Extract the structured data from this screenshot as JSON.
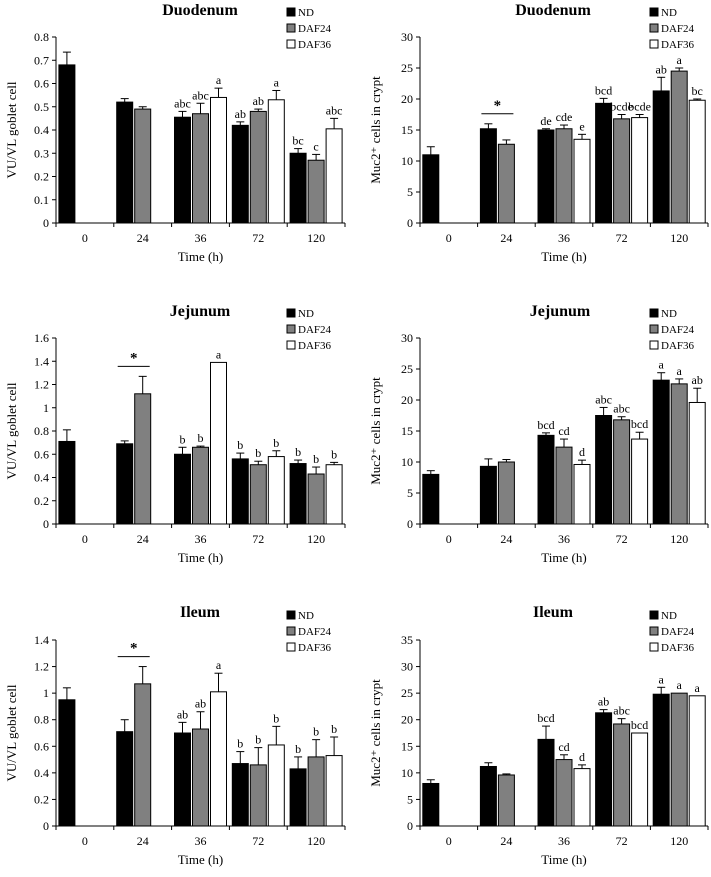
{
  "chart_data": [
    {
      "type": "bar",
      "title": "Duodenum",
      "xlabel": "Time (h)",
      "ylabel": "VU/VL goblet cell",
      "categories": [
        "0",
        "24",
        "36",
        "72",
        "120"
      ],
      "ylim": [
        0,
        0.8
      ],
      "yticks": [
        "0",
        "0.1",
        "0.2",
        "0.3",
        "0.4",
        "0.5",
        "0.6",
        "0.7",
        "0.8"
      ],
      "legend": [
        "ND",
        "DAF24",
        "DAF36"
      ],
      "series": [
        {
          "name": "ND",
          "color": "#000000",
          "values": [
            0.68,
            0.52,
            0.455,
            0.42,
            0.3
          ],
          "errors": [
            0.055,
            0.015,
            0.025,
            0.015,
            0.02
          ],
          "labels": [
            "",
            "",
            "abc",
            "ab",
            "bc"
          ]
        },
        {
          "name": "DAF24",
          "color": "#808080",
          "values": [
            null,
            0.49,
            0.47,
            0.48,
            0.27
          ],
          "errors": [
            null,
            0.01,
            0.045,
            0.01,
            0.025
          ],
          "labels": [
            "",
            "",
            "abc",
            "ab",
            "c"
          ]
        },
        {
          "name": "DAF36",
          "color": "#ffffff",
          "values": [
            null,
            null,
            0.54,
            0.53,
            0.405
          ],
          "errors": [
            null,
            null,
            0.04,
            0.04,
            0.045
          ],
          "labels": [
            "",
            "",
            "a",
            "a",
            "abc"
          ]
        }
      ],
      "significance": []
    },
    {
      "type": "bar",
      "title": "Duodenum",
      "xlabel": "Time (h)",
      "ylabel": "Muc2⁺ cells in crypt",
      "categories": [
        "0",
        "24",
        "36",
        "72",
        "120"
      ],
      "ylim": [
        0,
        30
      ],
      "yticks": [
        "0",
        "5",
        "10",
        "15",
        "20",
        "25",
        "30"
      ],
      "legend": [
        "ND",
        "DAF24",
        "DAF36"
      ],
      "series": [
        {
          "name": "ND",
          "color": "#000000",
          "values": [
            11.0,
            15.2,
            15.0,
            19.3,
            21.3
          ],
          "errors": [
            1.3,
            0.8,
            0.2,
            0.8,
            2.2
          ],
          "labels": [
            "",
            "",
            "de",
            "bcd",
            "ab"
          ]
        },
        {
          "name": "DAF24",
          "color": "#808080",
          "values": [
            null,
            12.7,
            15.2,
            16.8,
            24.5
          ],
          "errors": [
            null,
            0.7,
            0.6,
            0.7,
            0.5
          ],
          "labels": [
            "",
            "",
            "cde",
            "bcde",
            "a"
          ]
        },
        {
          "name": "DAF36",
          "color": "#ffffff",
          "values": [
            null,
            null,
            13.5,
            17.0,
            19.8
          ],
          "errors": [
            null,
            null,
            0.8,
            0.5,
            0.2
          ],
          "labels": [
            "",
            "",
            "e",
            "bcde",
            "bc"
          ]
        }
      ],
      "significance": [
        {
          "category": "24",
          "symbol": "*"
        }
      ]
    },
    {
      "type": "bar",
      "title": "Jejunum",
      "xlabel": "Time (h)",
      "ylabel": "VU/VL goblet cell",
      "categories": [
        "0",
        "24",
        "36",
        "72",
        "120"
      ],
      "ylim": [
        0,
        1.6
      ],
      "yticks": [
        "0",
        "0.2",
        "0.4",
        "0.6",
        "0.8",
        "1",
        "1.2",
        "1.4",
        "1.6"
      ],
      "legend": [
        "ND",
        "DAF24",
        "DAF36"
      ],
      "series": [
        {
          "name": "ND",
          "color": "#000000",
          "values": [
            0.71,
            0.69,
            0.6,
            0.56,
            0.52
          ],
          "errors": [
            0.1,
            0.025,
            0.06,
            0.05,
            0.03
          ],
          "labels": [
            "",
            "",
            "b",
            "b",
            "b"
          ]
        },
        {
          "name": "DAF24",
          "color": "#808080",
          "values": [
            null,
            1.12,
            0.66,
            0.51,
            0.43
          ],
          "errors": [
            null,
            0.15,
            0.01,
            0.03,
            0.06
          ],
          "labels": [
            "",
            "",
            "b",
            "b",
            "b"
          ]
        },
        {
          "name": "DAF36",
          "color": "#ffffff",
          "values": [
            null,
            null,
            1.39,
            0.58,
            0.51
          ],
          "errors": [
            null,
            null,
            0.0,
            0.05,
            0.02
          ],
          "labels": [
            "",
            "",
            "a",
            "b",
            "b"
          ]
        }
      ],
      "significance": [
        {
          "category": "24",
          "symbol": "*"
        }
      ]
    },
    {
      "type": "bar",
      "title": "Jejunum",
      "xlabel": "Time (h)",
      "ylabel": "Muc2⁺ cells in crypt",
      "categories": [
        "0",
        "24",
        "36",
        "72",
        "120"
      ],
      "ylim": [
        0,
        30
      ],
      "yticks": [
        "0",
        "5",
        "10",
        "15",
        "20",
        "25",
        "30"
      ],
      "legend": [
        "ND",
        "DAF24",
        "DAF36"
      ],
      "series": [
        {
          "name": "ND",
          "color": "#000000",
          "values": [
            8.0,
            9.3,
            14.3,
            17.5,
            23.2
          ],
          "errors": [
            0.6,
            1.2,
            0.4,
            1.3,
            1.2
          ],
          "labels": [
            "",
            "",
            "bcd",
            "abc",
            "a"
          ]
        },
        {
          "name": "DAF24",
          "color": "#808080",
          "values": [
            null,
            10.0,
            12.4,
            16.8,
            22.6
          ],
          "errors": [
            null,
            0.4,
            1.3,
            0.5,
            0.8
          ],
          "labels": [
            "",
            "",
            "cd",
            "abc",
            "a"
          ]
        },
        {
          "name": "DAF36",
          "color": "#ffffff",
          "values": [
            null,
            null,
            9.6,
            13.7,
            19.6
          ],
          "errors": [
            null,
            null,
            0.7,
            1.1,
            2.3
          ],
          "labels": [
            "",
            "",
            "d",
            "bcd",
            "ab"
          ]
        }
      ],
      "significance": []
    },
    {
      "type": "bar",
      "title": "Ileum",
      "xlabel": "Time (h)",
      "ylabel": "VU/VL goblet cell",
      "categories": [
        "0",
        "24",
        "36",
        "72",
        "120"
      ],
      "ylim": [
        0,
        1.4
      ],
      "yticks": [
        "0",
        "0.2",
        "0.4",
        "0.6",
        "0.8",
        "1",
        "1.2",
        "1.4"
      ],
      "legend": [
        "ND",
        "DAF24",
        "DAF36"
      ],
      "series": [
        {
          "name": "ND",
          "color": "#000000",
          "values": [
            0.95,
            0.71,
            0.7,
            0.47,
            0.43
          ],
          "errors": [
            0.09,
            0.09,
            0.08,
            0.09,
            0.09
          ],
          "labels": [
            "",
            "",
            "ab",
            "b",
            "b"
          ]
        },
        {
          "name": "DAF24",
          "color": "#808080",
          "values": [
            null,
            1.07,
            0.73,
            0.46,
            0.52
          ],
          "errors": [
            null,
            0.13,
            0.13,
            0.13,
            0.13
          ],
          "labels": [
            "",
            "",
            "ab",
            "b",
            "b"
          ]
        },
        {
          "name": "DAF36",
          "color": "#ffffff",
          "values": [
            null,
            null,
            1.01,
            0.61,
            0.53
          ],
          "errors": [
            null,
            null,
            0.14,
            0.14,
            0.14
          ],
          "labels": [
            "",
            "",
            "a",
            "b",
            "b"
          ]
        }
      ],
      "significance": [
        {
          "category": "24",
          "symbol": "*"
        }
      ]
    },
    {
      "type": "bar",
      "title": "Ileum",
      "xlabel": "Time (h)",
      "ylabel": "Muc2⁺ cells in crypt",
      "categories": [
        "0",
        "24",
        "36",
        "72",
        "120"
      ],
      "ylim": [
        0,
        35
      ],
      "yticks": [
        "0",
        "5",
        "10",
        "15",
        "20",
        "25",
        "30",
        "35"
      ],
      "legend": [
        "ND",
        "DAF24",
        "DAF36"
      ],
      "series": [
        {
          "name": "ND",
          "color": "#000000",
          "values": [
            8.0,
            11.2,
            16.3,
            21.3,
            24.8
          ],
          "errors": [
            0.7,
            0.7,
            2.5,
            0.6,
            1.3
          ],
          "labels": [
            "",
            "",
            "bcd",
            "ab",
            "a"
          ]
        },
        {
          "name": "DAF24",
          "color": "#808080",
          "values": [
            null,
            9.6,
            12.5,
            19.2,
            25.0
          ],
          "errors": [
            null,
            0.2,
            0.9,
            1.0,
            0.0
          ],
          "labels": [
            "",
            "",
            "cd",
            "abc",
            "a"
          ]
        },
        {
          "name": "DAF36",
          "color": "#ffffff",
          "values": [
            null,
            null,
            10.8,
            17.5,
            24.5
          ],
          "errors": [
            null,
            null,
            0.7,
            0.0,
            0.0
          ],
          "labels": [
            "",
            "",
            "d",
            "bcd",
            "a"
          ]
        }
      ],
      "significance": []
    }
  ]
}
